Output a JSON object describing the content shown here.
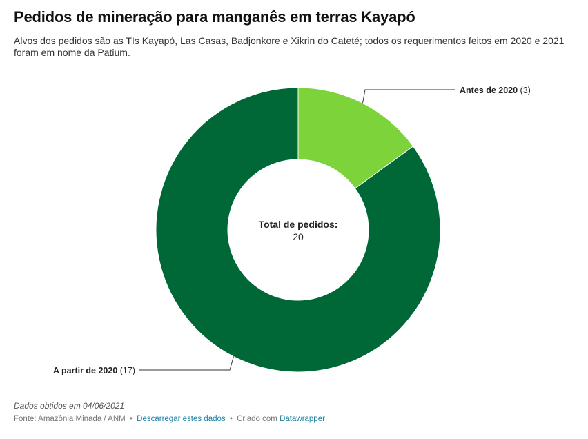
{
  "title": "Pedidos de mineração para manganês em terras Kayapó",
  "description": "Alvos dos pedidos são as TIs Kayapó, Las Casas, Badjonkore e Xikrin do Cateté; todos os requerimentos feitos em 2020 e 2021 foram em nome da Patium.",
  "center_label": {
    "title": "Total de pedidos:",
    "value": "20"
  },
  "chart_data": {
    "type": "pie",
    "slices": [
      {
        "label": "Antes de 2020",
        "value": 3,
        "color": "#7cd33a"
      },
      {
        "label": "A partir de 2020",
        "value": 17,
        "color": "#006837"
      }
    ],
    "total": 20
  },
  "footer": {
    "note": "Dados obtidos em 04/06/2021",
    "source": "Fonte: Amazônia Minada / ANM",
    "download_link": "Descarregar estes dados",
    "created_with": "Criado com",
    "tool_link": "Datawrapper",
    "separator": "•"
  }
}
